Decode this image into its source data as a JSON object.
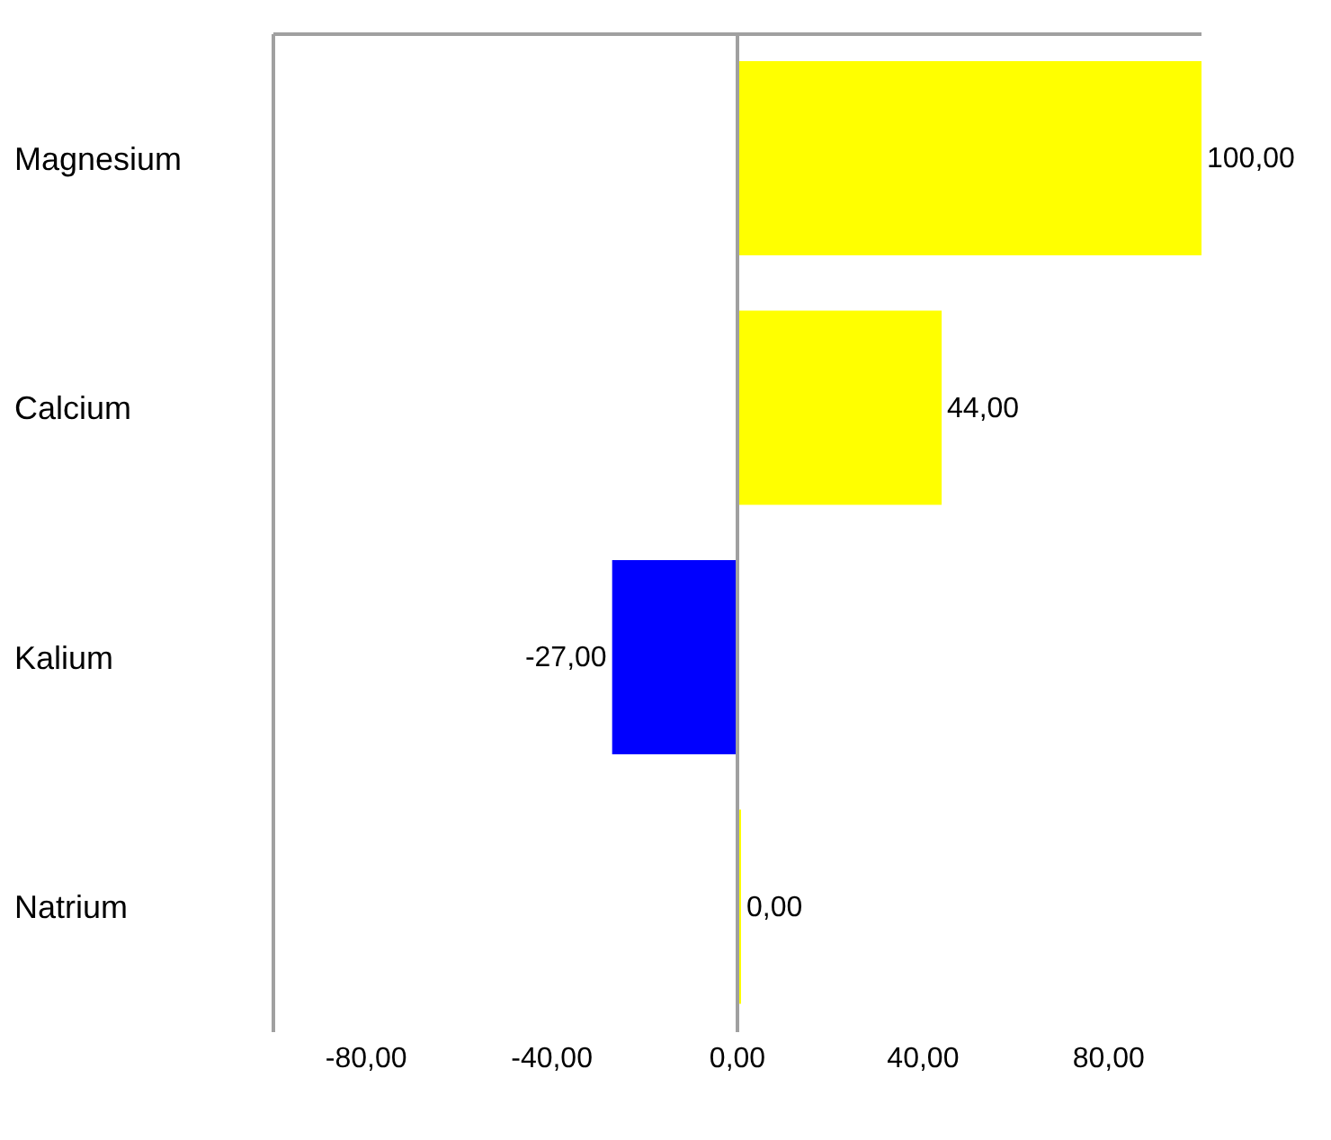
{
  "chart_data": {
    "type": "bar",
    "orientation": "horizontal",
    "categories": [
      "Magnesium",
      "Calcium",
      "Kalium",
      "Natrium"
    ],
    "values": [
      100,
      44,
      -27,
      0
    ],
    "colors": [
      "#ffff00",
      "#ffff00",
      "#0000ff",
      "#ffff00"
    ],
    "value_labels": [
      "100,00",
      "44,00",
      "-27,00",
      "0,00"
    ],
    "xlim": [
      -100,
      100
    ],
    "xticks": [
      {
        "value": -80,
        "label": "-80,00"
      },
      {
        "value": -40,
        "label": "-40,00"
      },
      {
        "value": 0,
        "label": "0,00"
      },
      {
        "value": 40,
        "label": "40,00"
      },
      {
        "value": 80,
        "label": "80,00"
      }
    ],
    "ref_lines": [
      {
        "axis": "x",
        "value": 0,
        "color": "#a0a0a0"
      }
    ],
    "grid": false
  }
}
